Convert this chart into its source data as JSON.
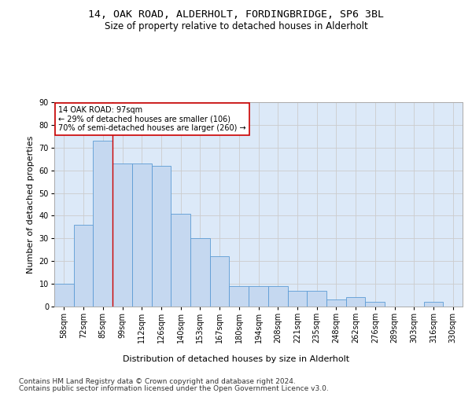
{
  "title": "14, OAK ROAD, ALDERHOLT, FORDINGBRIDGE, SP6 3BL",
  "subtitle": "Size of property relative to detached houses in Alderholt",
  "xlabel": "Distribution of detached houses by size in Alderholt",
  "ylabel": "Number of detached properties",
  "categories": [
    "58sqm",
    "72sqm",
    "85sqm",
    "99sqm",
    "112sqm",
    "126sqm",
    "140sqm",
    "153sqm",
    "167sqm",
    "180sqm",
    "194sqm",
    "208sqm",
    "221sqm",
    "235sqm",
    "248sqm",
    "262sqm",
    "276sqm",
    "289sqm",
    "303sqm",
    "316sqm",
    "330sqm"
  ],
  "values": [
    10,
    36,
    73,
    63,
    63,
    62,
    41,
    30,
    22,
    9,
    9,
    9,
    7,
    7,
    3,
    4,
    2,
    0,
    0,
    2,
    0
  ],
  "bar_color": "#c5d8f0",
  "bar_edge_color": "#5b9bd5",
  "red_line_x": 2.5,
  "annotation_line1": "14 OAK ROAD: 97sqm",
  "annotation_line2": "← 29% of detached houses are smaller (106)",
  "annotation_line3": "70% of semi-detached houses are larger (260) →",
  "annotation_box_color": "#ffffff",
  "annotation_box_edge": "#cc0000",
  "vline_color": "#cc0000",
  "ylim": [
    0,
    90
  ],
  "yticks": [
    0,
    10,
    20,
    30,
    40,
    50,
    60,
    70,
    80,
    90
  ],
  "grid_color": "#cccccc",
  "background_color": "#dce9f8",
  "fig_background": "#ffffff",
  "footer_line1": "Contains HM Land Registry data © Crown copyright and database right 2024.",
  "footer_line2": "Contains public sector information licensed under the Open Government Licence v3.0.",
  "title_fontsize": 9.5,
  "subtitle_fontsize": 8.5,
  "axis_label_fontsize": 8,
  "tick_fontsize": 7,
  "annotation_fontsize": 7,
  "footer_fontsize": 6.5
}
